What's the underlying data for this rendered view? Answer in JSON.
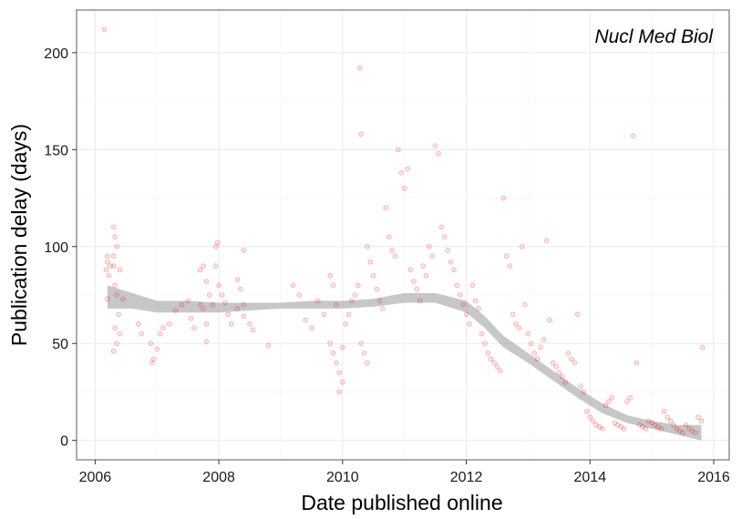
{
  "chart_data": {
    "type": "scatter",
    "title": "",
    "annotation": "Nucl Med Biol",
    "xlabel": "Date published online",
    "ylabel": "Publication delay (days)",
    "xlim": [
      2005.7,
      2016.25
    ],
    "ylim": [
      -10,
      222
    ],
    "x_ticks": [
      2006,
      2008,
      2010,
      2012,
      2014,
      2016
    ],
    "x_tick_labels": [
      "2006",
      "2008",
      "2010",
      "2012",
      "2014",
      "2016"
    ],
    "y_ticks": [
      0,
      50,
      100,
      150,
      200
    ],
    "y_tick_labels": [
      "0",
      "50",
      "100",
      "150",
      "200"
    ],
    "grid": true,
    "point_color": "#e31a1c",
    "point_alpha": 0.18,
    "smooth_color": "#999999",
    "smooth_alpha": 0.55,
    "smooth": {
      "x": [
        2006.2,
        2006.6,
        2007.0,
        2007.5,
        2008.0,
        2008.5,
        2009.0,
        2009.5,
        2010.0,
        2010.5,
        2011.0,
        2011.5,
        2012.0,
        2012.3,
        2012.6,
        2013.0,
        2013.4,
        2013.8,
        2014.2,
        2014.6,
        2015.0,
        2015.4,
        2015.8
      ],
      "lower": [
        68,
        68,
        66,
        66,
        66,
        67,
        68,
        68,
        68,
        69,
        71,
        71,
        66,
        58,
        48,
        40,
        31,
        22,
        14,
        9,
        6,
        3,
        0
      ],
      "upper": [
        80,
        76,
        72,
        72,
        71,
        71,
        71,
        72,
        72,
        73,
        76,
        76,
        72,
        64,
        54,
        45,
        36,
        27,
        19,
        13,
        10,
        8,
        8
      ]
    },
    "points": [
      [
        2006.15,
        212
      ],
      [
        2006.2,
        95
      ],
      [
        2006.2,
        92
      ],
      [
        2006.18,
        88
      ],
      [
        2006.22,
        85
      ],
      [
        2006.2,
        73
      ],
      [
        2006.25,
        90
      ],
      [
        2006.3,
        110
      ],
      [
        2006.32,
        105
      ],
      [
        2006.35,
        100
      ],
      [
        2006.3,
        95
      ],
      [
        2006.3,
        90
      ],
      [
        2006.4,
        88
      ],
      [
        2006.32,
        80
      ],
      [
        2006.35,
        75
      ],
      [
        2006.38,
        65
      ],
      [
        2006.32,
        58
      ],
      [
        2006.4,
        55
      ],
      [
        2006.35,
        50
      ],
      [
        2006.3,
        46
      ],
      [
        2006.45,
        73
      ],
      [
        2006.7,
        60
      ],
      [
        2006.75,
        55
      ],
      [
        2006.9,
        50
      ],
      [
        2006.95,
        42
      ],
      [
        2006.92,
        40
      ],
      [
        2007.0,
        47
      ],
      [
        2007.05,
        55
      ],
      [
        2007.1,
        58
      ],
      [
        2007.2,
        60
      ],
      [
        2007.3,
        67
      ],
      [
        2007.4,
        70
      ],
      [
        2007.5,
        72
      ],
      [
        2007.55,
        63
      ],
      [
        2007.6,
        58
      ],
      [
        2007.7,
        88
      ],
      [
        2007.75,
        90
      ],
      [
        2007.8,
        82
      ],
      [
        2007.85,
        75
      ],
      [
        2007.7,
        70
      ],
      [
        2007.75,
        68
      ],
      [
        2007.8,
        60
      ],
      [
        2007.8,
        51
      ],
      [
        2007.9,
        70
      ],
      [
        2007.95,
        90
      ],
      [
        2008.0,
        80
      ],
      [
        2008.05,
        75
      ],
      [
        2008.1,
        71
      ],
      [
        2008.15,
        65
      ],
      [
        2007.95,
        100
      ],
      [
        2007.98,
        102
      ],
      [
        2008.2,
        60
      ],
      [
        2008.3,
        83
      ],
      [
        2008.35,
        78
      ],
      [
        2008.4,
        70
      ],
      [
        2008.3,
        68
      ],
      [
        2008.4,
        64
      ],
      [
        2008.5,
        60
      ],
      [
        2008.55,
        57
      ],
      [
        2008.4,
        98
      ],
      [
        2008.8,
        49
      ],
      [
        2009.2,
        80
      ],
      [
        2009.3,
        75
      ],
      [
        2009.4,
        62
      ],
      [
        2009.5,
        58
      ],
      [
        2009.6,
        72
      ],
      [
        2009.7,
        65
      ],
      [
        2009.8,
        85
      ],
      [
        2009.85,
        80
      ],
      [
        2009.9,
        70
      ],
      [
        2009.8,
        50
      ],
      [
        2009.85,
        45
      ],
      [
        2009.9,
        40
      ],
      [
        2009.95,
        35
      ],
      [
        2010.0,
        30
      ],
      [
        2009.95,
        25
      ],
      [
        2010.0,
        48
      ],
      [
        2010.05,
        60
      ],
      [
        2010.1,
        65
      ],
      [
        2010.15,
        72
      ],
      [
        2010.2,
        75
      ],
      [
        2010.25,
        80
      ],
      [
        2010.3,
        50
      ],
      [
        2010.35,
        45
      ],
      [
        2010.4,
        40
      ],
      [
        2010.3,
        158
      ],
      [
        2010.28,
        192
      ],
      [
        2010.4,
        100
      ],
      [
        2010.45,
        92
      ],
      [
        2010.5,
        85
      ],
      [
        2010.55,
        78
      ],
      [
        2010.6,
        72
      ],
      [
        2010.65,
        68
      ],
      [
        2010.7,
        120
      ],
      [
        2010.75,
        105
      ],
      [
        2010.8,
        98
      ],
      [
        2010.85,
        95
      ],
      [
        2010.9,
        150
      ],
      [
        2010.95,
        138
      ],
      [
        2011.0,
        130
      ],
      [
        2011.05,
        140
      ],
      [
        2011.1,
        88
      ],
      [
        2011.15,
        82
      ],
      [
        2011.2,
        78
      ],
      [
        2011.25,
        72
      ],
      [
        2011.3,
        90
      ],
      [
        2011.35,
        85
      ],
      [
        2011.4,
        100
      ],
      [
        2011.45,
        95
      ],
      [
        2011.5,
        152
      ],
      [
        2011.55,
        148
      ],
      [
        2011.6,
        110
      ],
      [
        2011.65,
        105
      ],
      [
        2011.7,
        98
      ],
      [
        2011.75,
        92
      ],
      [
        2011.8,
        88
      ],
      [
        2011.85,
        80
      ],
      [
        2011.9,
        75
      ],
      [
        2011.95,
        70
      ],
      [
        2012.0,
        65
      ],
      [
        2012.05,
        60
      ],
      [
        2012.1,
        80
      ],
      [
        2012.15,
        72
      ],
      [
        2012.2,
        68
      ],
      [
        2012.25,
        55
      ],
      [
        2012.3,
        50
      ],
      [
        2012.35,
        45
      ],
      [
        2012.4,
        42
      ],
      [
        2012.45,
        40
      ],
      [
        2012.5,
        38
      ],
      [
        2012.55,
        36
      ],
      [
        2012.6,
        125
      ],
      [
        2012.65,
        95
      ],
      [
        2012.7,
        90
      ],
      [
        2012.75,
        65
      ],
      [
        2012.8,
        60
      ],
      [
        2012.85,
        58
      ],
      [
        2012.9,
        100
      ],
      [
        2012.95,
        70
      ],
      [
        2013.0,
        55
      ],
      [
        2013.05,
        50
      ],
      [
        2013.1,
        45
      ],
      [
        2013.15,
        42
      ],
      [
        2013.2,
        48
      ],
      [
        2013.25,
        52
      ],
      [
        2013.3,
        103
      ],
      [
        2013.35,
        62
      ],
      [
        2013.4,
        40
      ],
      [
        2013.45,
        38
      ],
      [
        2013.5,
        35
      ],
      [
        2013.55,
        33
      ],
      [
        2013.6,
        30
      ],
      [
        2013.65,
        45
      ],
      [
        2013.7,
        42
      ],
      [
        2013.75,
        40
      ],
      [
        2013.8,
        65
      ],
      [
        2013.85,
        28
      ],
      [
        2013.9,
        25
      ],
      [
        2013.95,
        15
      ],
      [
        2014.0,
        12
      ],
      [
        2014.05,
        10
      ],
      [
        2014.1,
        8
      ],
      [
        2014.15,
        7
      ],
      [
        2014.2,
        6
      ],
      [
        2014.25,
        18
      ],
      [
        2014.3,
        20
      ],
      [
        2014.35,
        22
      ],
      [
        2014.4,
        9
      ],
      [
        2014.45,
        8
      ],
      [
        2014.5,
        7
      ],
      [
        2014.55,
        6
      ],
      [
        2014.6,
        20
      ],
      [
        2014.65,
        22
      ],
      [
        2014.7,
        157
      ],
      [
        2014.75,
        40
      ],
      [
        2014.8,
        8
      ],
      [
        2014.85,
        7
      ],
      [
        2014.9,
        6
      ],
      [
        2014.95,
        10
      ],
      [
        2015.0,
        9
      ],
      [
        2015.05,
        8
      ],
      [
        2015.1,
        7
      ],
      [
        2015.15,
        6
      ],
      [
        2015.2,
        15
      ],
      [
        2015.25,
        12
      ],
      [
        2015.3,
        10
      ],
      [
        2015.35,
        8
      ],
      [
        2015.4,
        6
      ],
      [
        2015.45,
        5
      ],
      [
        2015.5,
        4
      ],
      [
        2015.55,
        8
      ],
      [
        2015.6,
        6
      ],
      [
        2015.65,
        5
      ],
      [
        2015.7,
        4
      ],
      [
        2015.75,
        12
      ],
      [
        2015.8,
        10
      ],
      [
        2015.82,
        48
      ]
    ]
  }
}
